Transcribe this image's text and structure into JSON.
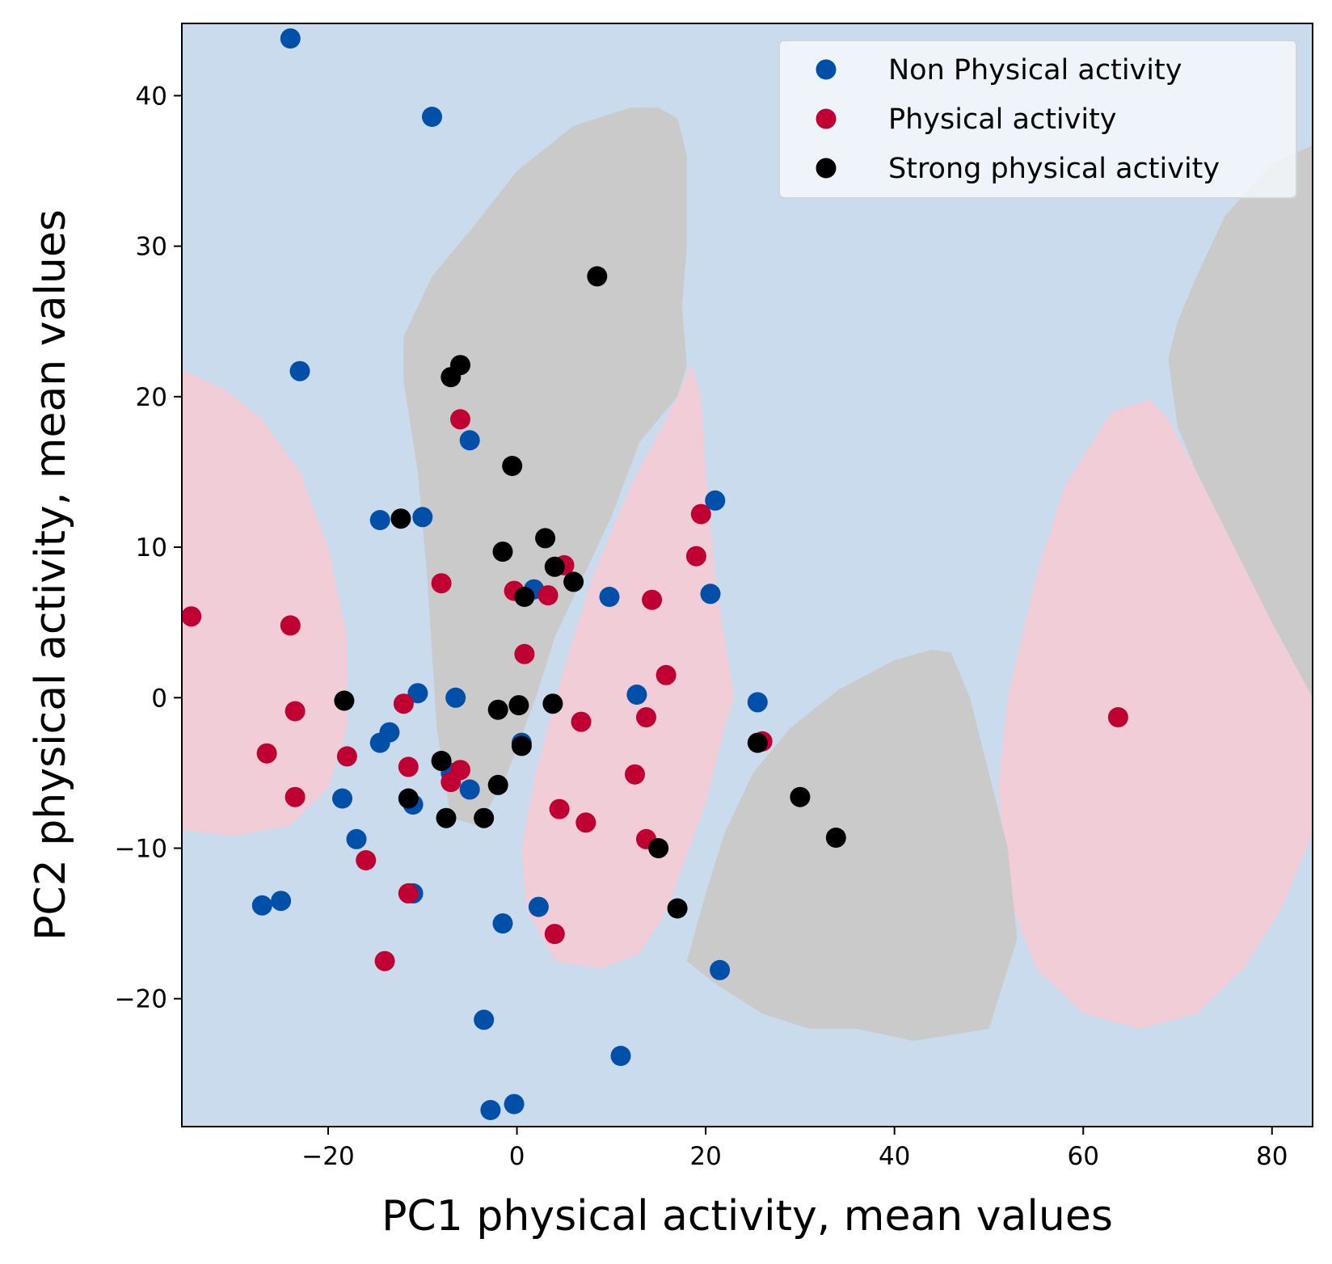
{
  "chart_data": {
    "type": "scatter",
    "title": "",
    "xlabel": "PC1 physical activity, mean values",
    "ylabel": "PC2 physical activity, mean values",
    "xlim": [
      -35.5,
      84.3
    ],
    "ylim": [
      -28.5,
      44.8
    ],
    "xticks": [
      -20,
      0,
      20,
      40,
      60,
      80
    ],
    "yticks": [
      -20,
      -10,
      0,
      10,
      20,
      30,
      40
    ],
    "xtick_labels": [
      "−20",
      "0",
      "20",
      "40",
      "60",
      "80"
    ],
    "ytick_labels": [
      "−20",
      "−10",
      "0",
      "10",
      "20",
      "30",
      "40"
    ],
    "grid": false,
    "legend_position": "top-right",
    "regions": [
      {
        "class": "Physical activity",
        "color": "#f0cdd7",
        "polygon": [
          [
            -35.5,
            21.8
          ],
          [
            -31,
            20.5
          ],
          [
            -27,
            18.5
          ],
          [
            -23,
            15
          ],
          [
            -20,
            10
          ],
          [
            -18,
            4
          ],
          [
            -18,
            -2
          ],
          [
            -20,
            -6
          ],
          [
            -24,
            -8.5
          ],
          [
            -30,
            -9.2
          ],
          [
            -35.5,
            -8.8
          ]
        ]
      },
      {
        "class": "Physical activity",
        "color": "#f0cdd7",
        "polygon": [
          [
            18.5,
            22.2
          ],
          [
            17,
            20
          ],
          [
            12,
            14
          ],
          [
            8,
            8
          ],
          [
            5,
            2
          ],
          [
            2,
            -5
          ],
          [
            0.5,
            -10
          ],
          [
            1,
            -14
          ],
          [
            4,
            -17.5
          ],
          [
            9,
            -18
          ],
          [
            13,
            -17
          ],
          [
            16,
            -14
          ],
          [
            20,
            -7
          ],
          [
            22,
            -2
          ],
          [
            23,
            0
          ],
          [
            22,
            4
          ],
          [
            21,
            8
          ],
          [
            20,
            15
          ],
          [
            19.5,
            20
          ]
        ]
      },
      {
        "class": "Physical activity",
        "color": "#f0cdd7",
        "polygon": [
          [
            67,
            19.8
          ],
          [
            63,
            19
          ],
          [
            58,
            14
          ],
          [
            55,
            8
          ],
          [
            52,
            0
          ],
          [
            51,
            -6
          ],
          [
            52,
            -13
          ],
          [
            55,
            -18
          ],
          [
            60,
            -21
          ],
          [
            66,
            -22
          ],
          [
            72,
            -21
          ],
          [
            77,
            -18
          ],
          [
            81,
            -14
          ],
          [
            84.3,
            -9
          ],
          [
            84.3,
            0
          ],
          [
            80,
            5
          ],
          [
            76,
            10
          ],
          [
            72,
            15
          ],
          [
            69,
            18.5
          ]
        ]
      },
      {
        "class": "Strong physical activity",
        "color": "#cacaca",
        "polygon": [
          [
            12,
            39.2
          ],
          [
            6,
            38
          ],
          [
            0,
            35
          ],
          [
            -5,
            31
          ],
          [
            -9,
            28
          ],
          [
            -12,
            24
          ],
          [
            -12,
            21
          ],
          [
            -10.5,
            15
          ],
          [
            -9.5,
            8
          ],
          [
            -8.5,
            -2
          ],
          [
            -7,
            -8
          ],
          [
            -4,
            -8.5
          ],
          [
            -1,
            -5
          ],
          [
            2,
            0
          ],
          [
            4,
            4
          ],
          [
            7,
            8
          ],
          [
            10,
            12
          ],
          [
            13,
            17
          ],
          [
            17,
            20
          ],
          [
            18,
            22
          ],
          [
            17.5,
            26
          ],
          [
            18,
            30
          ],
          [
            18,
            36
          ],
          [
            17,
            38.5
          ],
          [
            15,
            39.2
          ]
        ]
      },
      {
        "class": "Strong physical activity",
        "color": "#cacaca",
        "polygon": [
          [
            44,
            3.2
          ],
          [
            40,
            2.5
          ],
          [
            34,
            0.5
          ],
          [
            29,
            -2
          ],
          [
            25,
            -5
          ],
          [
            22,
            -9
          ],
          [
            20,
            -13
          ],
          [
            18,
            -17.5
          ],
          [
            21,
            -19
          ],
          [
            26,
            -21
          ],
          [
            31,
            -22
          ],
          [
            36,
            -22
          ],
          [
            42,
            -22.8
          ],
          [
            50,
            -22
          ],
          [
            53,
            -16
          ],
          [
            52,
            -10
          ],
          [
            50,
            -5
          ],
          [
            48,
            0
          ],
          [
            46,
            3
          ]
        ]
      },
      {
        "class": "Strong physical activity",
        "color": "#cacaca",
        "polygon": [
          [
            84.3,
            36.7
          ],
          [
            80,
            35.5
          ],
          [
            75,
            32
          ],
          [
            72,
            28
          ],
          [
            70,
            25
          ],
          [
            69,
            22.5
          ],
          [
            70,
            18
          ],
          [
            72,
            15
          ],
          [
            76,
            10
          ],
          [
            80,
            5
          ],
          [
            84.3,
            0
          ]
        ]
      }
    ],
    "series": [
      {
        "name": "Non Physical activity",
        "color": "#0050aa",
        "points": [
          [
            -24,
            43.8
          ],
          [
            -9,
            38.6
          ],
          [
            -23,
            21.7
          ],
          [
            -5,
            17.1
          ],
          [
            -14.5,
            11.8
          ],
          [
            -10,
            12
          ],
          [
            21,
            13.1
          ],
          [
            20.5,
            6.9
          ],
          [
            1.8,
            7.2
          ],
          [
            9.8,
            6.7
          ],
          [
            -6.5,
            0
          ],
          [
            -10.5,
            0.3
          ],
          [
            12.7,
            0.2
          ],
          [
            25.5,
            -0.3
          ],
          [
            -13.5,
            -2.3
          ],
          [
            -14.5,
            -3
          ],
          [
            0.5,
            -3
          ],
          [
            -18.5,
            -6.7
          ],
          [
            -11,
            -7.1
          ],
          [
            -5,
            -6.1
          ],
          [
            -17,
            -9.4
          ],
          [
            -7,
            -5
          ],
          [
            -25,
            -13.5
          ],
          [
            -27,
            -13.8
          ],
          [
            -11,
            -13
          ],
          [
            2.3,
            -13.9
          ],
          [
            -1.5,
            -15
          ],
          [
            21.5,
            -18.1
          ],
          [
            -3.5,
            -21.4
          ],
          [
            11,
            -23.8
          ],
          [
            -2.8,
            -27.4
          ],
          [
            -0.3,
            -27
          ]
        ]
      },
      {
        "name": "Physical activity",
        "color": "#c00032",
        "points": [
          [
            -34.5,
            5.4
          ],
          [
            -6,
            18.5
          ],
          [
            19.5,
            12.2
          ],
          [
            19,
            9.4
          ],
          [
            -8,
            7.6
          ],
          [
            5,
            8.8
          ],
          [
            -0.3,
            7.1
          ],
          [
            3.3,
            6.8
          ],
          [
            14.3,
            6.5
          ],
          [
            0.8,
            2.9
          ],
          [
            15.8,
            1.5
          ],
          [
            -24,
            4.8
          ],
          [
            -23.5,
            -0.9
          ],
          [
            -12,
            -0.4
          ],
          [
            13.7,
            -1.3
          ],
          [
            6.8,
            -1.6
          ],
          [
            26,
            -2.9
          ],
          [
            63.7,
            -1.3
          ],
          [
            -26.5,
            -3.7
          ],
          [
            -18,
            -3.9
          ],
          [
            -11.5,
            -4.6
          ],
          [
            -7,
            -5.6
          ],
          [
            -6,
            -4.8
          ],
          [
            12.5,
            -5.1
          ],
          [
            -23.5,
            -6.6
          ],
          [
            4.5,
            -7.4
          ],
          [
            7.3,
            -8.3
          ],
          [
            13.7,
            -9.4
          ],
          [
            -16,
            -10.8
          ],
          [
            -11.5,
            -13
          ],
          [
            4,
            -15.7
          ],
          [
            -14,
            -17.5
          ]
        ]
      },
      {
        "name": "Strong physical activity",
        "color": "#000000",
        "points": [
          [
            8.5,
            28
          ],
          [
            -6,
            22.1
          ],
          [
            -7,
            21.3
          ],
          [
            -0.5,
            15.4
          ],
          [
            -12.3,
            11.9
          ],
          [
            3,
            10.6
          ],
          [
            -1.5,
            9.7
          ],
          [
            4,
            8.7
          ],
          [
            6,
            7.7
          ],
          [
            0.8,
            6.7
          ],
          [
            -18.3,
            -0.2
          ],
          [
            -2,
            -0.8
          ],
          [
            0.2,
            -0.5
          ],
          [
            3.8,
            -0.4
          ],
          [
            -8,
            -4.2
          ],
          [
            25.5,
            -3
          ],
          [
            0.5,
            -3.2
          ],
          [
            -11.5,
            -6.7
          ],
          [
            -2,
            -5.8
          ],
          [
            30,
            -6.6
          ],
          [
            -7.5,
            -8
          ],
          [
            -3.5,
            -8
          ],
          [
            33.8,
            -9.3
          ],
          [
            15,
            -10
          ],
          [
            17,
            -14
          ]
        ]
      }
    ]
  }
}
